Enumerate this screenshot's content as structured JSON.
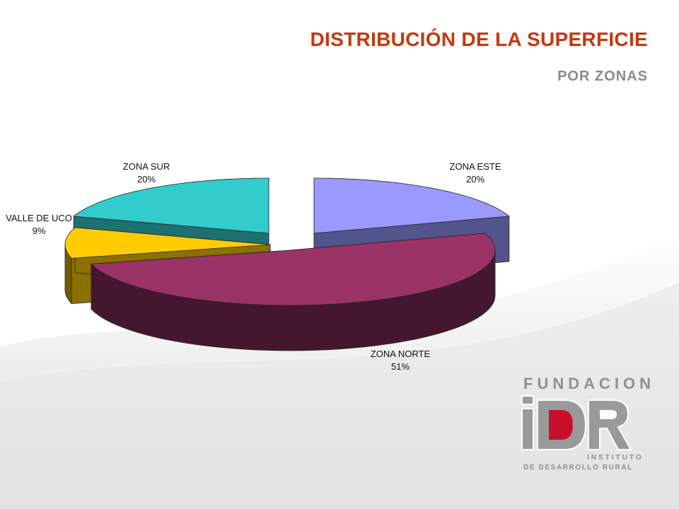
{
  "slide": {
    "title": "DISTRIBUCIÓN DE LA SUPERFICIE",
    "subtitle": "POR ZONAS"
  },
  "logo": {
    "top_text": "FUNDACION",
    "mark_text": "iDR",
    "line1": "INSTITUTO",
    "line2": "DE DESARROLLO RURAL"
  },
  "colors": {
    "title": "#c8360e",
    "subtitle": "#8a8a8a",
    "logo_gray": "#8f8f8f",
    "logo_red": "#c8102e"
  },
  "chart_data": {
    "type": "pie",
    "style": "3d-exploded",
    "title": "",
    "slices": [
      {
        "label": "ZONA ESTE",
        "percent_label": "20%",
        "value": 20,
        "color": "#9999ff"
      },
      {
        "label": "ZONA NORTE",
        "percent_label": "51%",
        "value": 51,
        "color": "#993366"
      },
      {
        "label": "VALLE DE UCO",
        "percent_label": "9%",
        "value": 9,
        "color": "#ffcc00"
      },
      {
        "label": "ZONA SUR",
        "percent_label": "20%",
        "value": 20,
        "color": "#33cccc"
      }
    ]
  }
}
